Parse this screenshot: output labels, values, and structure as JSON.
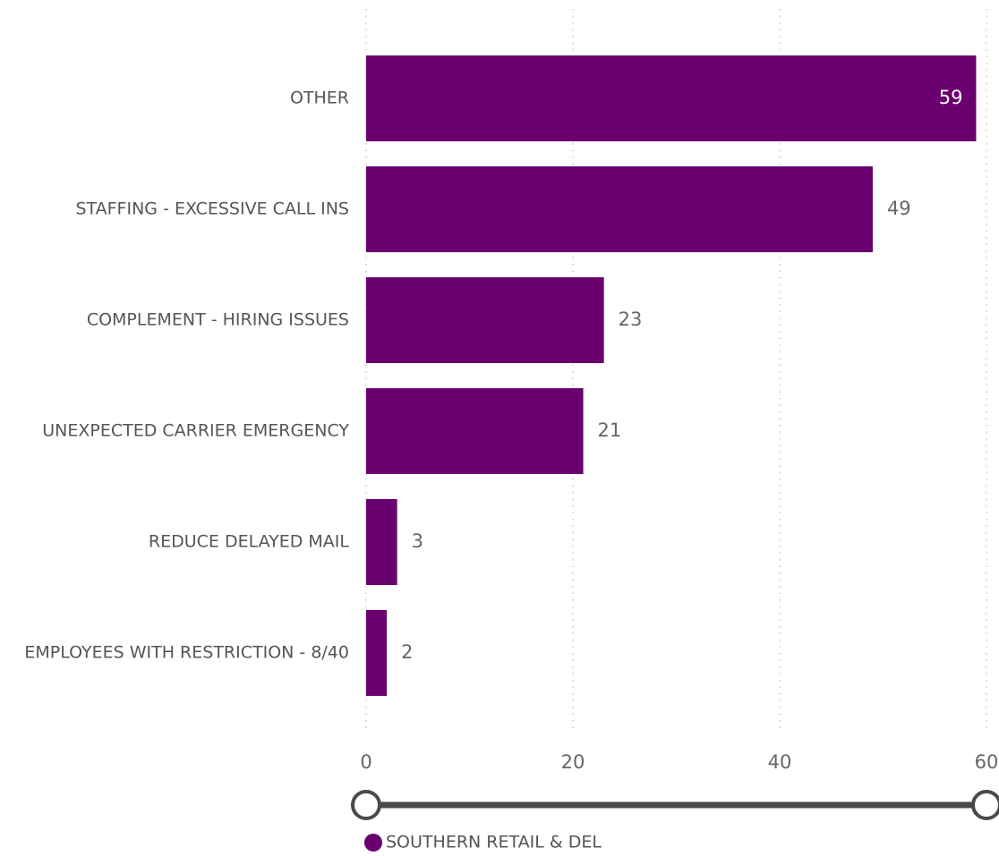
{
  "chart_data": {
    "type": "bar",
    "orientation": "horizontal",
    "categories": [
      "OTHER",
      "STAFFING - EXCESSIVE CALL INS",
      "COMPLEMENT - HIRING ISSUES",
      "UNEXPECTED CARRIER EMERGENCY",
      "REDUCE DELAYED MAIL",
      "EMPLOYEES WITH RESTRICTION - 8/40"
    ],
    "series": [
      {
        "name": "SOUTHERN RETAIL & DEL",
        "values": [
          59,
          49,
          23,
          21,
          3,
          2
        ],
        "color": "#6a0070"
      }
    ],
    "data_labels": [
      "59",
      "49",
      "23",
      "21",
      "3",
      "2"
    ],
    "x_ticks": [
      0,
      20,
      40,
      60
    ],
    "x_tick_labels": [
      "0",
      "20",
      "40",
      "60"
    ],
    "xlim": [
      0,
      60
    ],
    "grid": true,
    "grid_style": "dotted vertical",
    "legend": {
      "placement": "bottom-left",
      "label": "SOUTHERN RETAIL & DEL"
    },
    "zoom_slider": {
      "range": [
        0,
        60
      ],
      "color": "#4a4a4a"
    }
  }
}
